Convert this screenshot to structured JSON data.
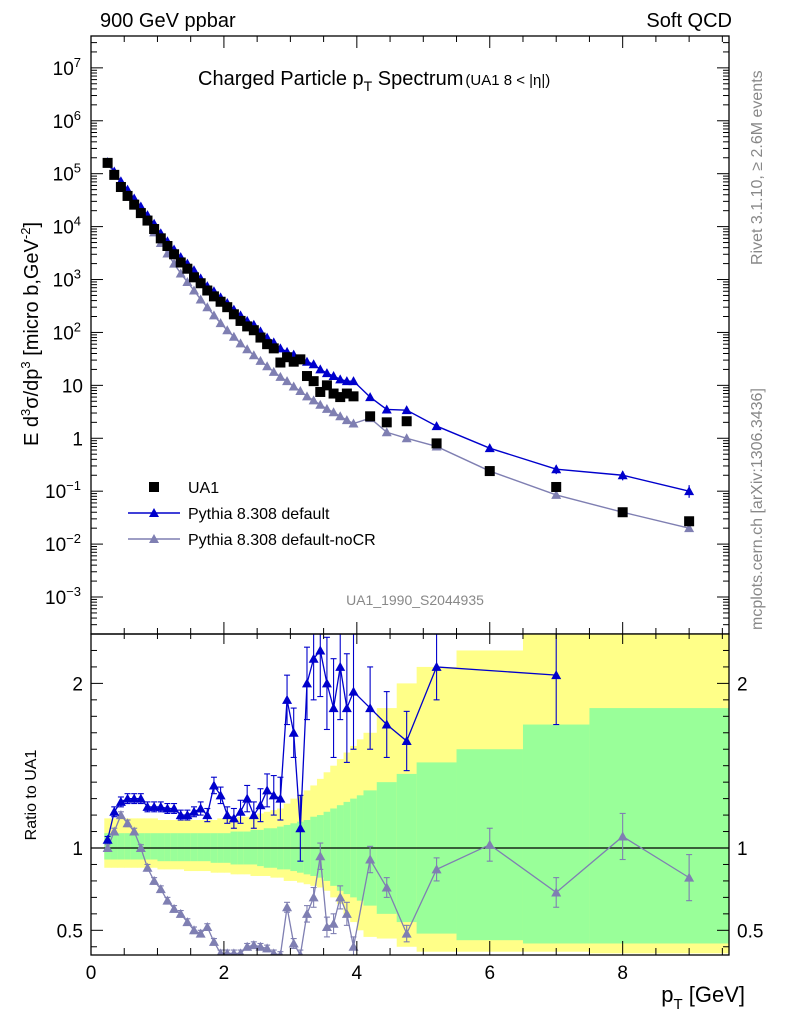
{
  "header": {
    "left_label": "900 GeV ppbar",
    "right_label": "Soft QCD"
  },
  "side": {
    "rivet_label": "Rivet 3.1.10, ≥ 2.6M events",
    "mcplots_label": "mcplots.cern.ch [arXiv:1306.3436]"
  },
  "colors": {
    "data": "#000000",
    "default": "#0000cc",
    "nocr": "#7f7fb2",
    "band_yellow": "#ffff88",
    "band_green": "#99ff99"
  },
  "chart_data": [
    {
      "type": "scatter",
      "title_main": "Charged Particle p",
      "title_sub": "T",
      "title_tail": " Spectrum",
      "title_detail": "(UA1   8 < |η|)",
      "ylabel_parts": [
        "E d",
        "3",
        "σ/dp",
        "3",
        " [micro b,GeV",
        "-2",
        "]"
      ],
      "watermark": "UA1_1990_S2044935",
      "log_y": true,
      "xlim": [
        0,
        9.6
      ],
      "ylim": [
        0.0002,
        40000000
      ],
      "y_ticks": [
        {
          "value": 10000000,
          "base": "10",
          "exp": "7"
        },
        {
          "value": 1000000,
          "base": "10",
          "exp": "6"
        },
        {
          "value": 100000,
          "base": "10",
          "exp": "5"
        },
        {
          "value": 10000,
          "base": "10",
          "exp": "4"
        },
        {
          "value": 1000,
          "base": "10",
          "exp": "3"
        },
        {
          "value": 100,
          "base": "10",
          "exp": "2"
        },
        {
          "value": 10,
          "base": "10",
          "exp": ""
        },
        {
          "value": 1,
          "base": "1",
          "exp": ""
        },
        {
          "value": 0.1,
          "base": "10",
          "exp": "−1"
        },
        {
          "value": 0.01,
          "base": "10",
          "exp": "−2"
        },
        {
          "value": 0.001,
          "base": "10",
          "exp": "−3"
        }
      ],
      "legend": [
        {
          "name": "UA1",
          "marker": "square",
          "color": "#000000"
        },
        {
          "name": "Pythia 8.308 default",
          "marker": "triangle",
          "color": "#0000cc"
        },
        {
          "name": "Pythia 8.308 default-noCR",
          "marker": "triangle",
          "color": "#7f7fb2"
        }
      ],
      "legend_position": "bottom-left",
      "series": [
        {
          "name": "UA1",
          "x": [
            0.25,
            0.35,
            0.45,
            0.55,
            0.65,
            0.75,
            0.85,
            0.95,
            1.05,
            1.15,
            1.25,
            1.35,
            1.45,
            1.55,
            1.65,
            1.75,
            1.85,
            1.95,
            2.05,
            2.15,
            2.25,
            2.35,
            2.45,
            2.55,
            2.65,
            2.75,
            2.85,
            2.95,
            3.05,
            3.15,
            3.25,
            3.35,
            3.45,
            3.55,
            3.65,
            3.75,
            3.85,
            3.95,
            4.2,
            4.45,
            4.75,
            5.2,
            6.0,
            7.0,
            8.0,
            9.0
          ],
          "y": [
            160000,
            95000,
            56000,
            38000,
            26000,
            18000,
            13000,
            9000,
            6000,
            4300,
            3000,
            2100,
            1600,
            1100,
            850,
            620,
            480,
            380,
            300,
            220,
            165,
            130,
            110,
            80,
            60,
            50,
            27,
            34,
            28,
            31,
            15,
            12,
            7.5,
            10,
            7,
            6,
            7,
            6.2,
            2.6,
            2.0,
            2.1,
            0.8,
            0.24,
            0.12,
            0.04,
            0.027
          ]
        },
        {
          "name": "Pythia 8.308 default",
          "x": [
            0.25,
            0.35,
            0.45,
            0.55,
            0.65,
            0.75,
            0.85,
            0.95,
            1.05,
            1.15,
            1.25,
            1.35,
            1.45,
            1.55,
            1.65,
            1.75,
            1.85,
            1.95,
            2.05,
            2.15,
            2.25,
            2.35,
            2.45,
            2.55,
            2.65,
            2.75,
            2.85,
            2.95,
            3.05,
            3.15,
            3.25,
            3.35,
            3.45,
            3.55,
            3.65,
            3.75,
            3.85,
            3.95,
            4.2,
            4.45,
            4.75,
            5.2,
            6.0,
            7.0,
            8.0,
            9.0
          ],
          "y": [
            165000,
            110000,
            72000,
            50000,
            34000,
            24000,
            16500,
            11300,
            7500,
            5300,
            3700,
            2650,
            2000,
            1500,
            1050,
            750,
            600,
            460,
            360,
            270,
            210,
            165,
            140,
            105,
            80,
            65,
            50,
            43,
            38,
            31,
            28,
            25,
            20,
            17,
            15,
            13,
            12,
            12,
            6,
            3.5,
            3.4,
            1.7,
            0.65,
            0.26,
            0.2,
            0.1
          ]
        },
        {
          "name": "Pythia 8.308 default-noCR",
          "x": [
            0.25,
            0.35,
            0.45,
            0.55,
            0.65,
            0.75,
            0.85,
            0.95,
            1.05,
            1.15,
            1.25,
            1.35,
            1.45,
            1.55,
            1.65,
            1.75,
            1.85,
            1.95,
            2.05,
            2.15,
            2.25,
            2.35,
            2.45,
            2.55,
            2.65,
            2.75,
            2.85,
            2.95,
            3.05,
            3.15,
            3.25,
            3.35,
            3.45,
            3.55,
            3.65,
            3.75,
            3.85,
            3.95,
            4.2,
            4.45,
            4.75,
            5.2,
            6.0,
            7.0,
            8.0,
            9.0
          ],
          "y": [
            160000,
            100000,
            66000,
            44000,
            29000,
            19000,
            12500,
            7800,
            4900,
            3100,
            2000,
            1300,
            900,
            620,
            420,
            300,
            210,
            150,
            110,
            83,
            62,
            48,
            37,
            29,
            23,
            18,
            14.5,
            12,
            9.5,
            7.8,
            6.2,
            5.2,
            4.3,
            3.6,
            3.1,
            2.6,
            2.2,
            1.9,
            2.4,
            1.3,
            1.0,
            0.7,
            0.24,
            0.085,
            0.04,
            0.02
          ]
        }
      ],
      "errors": {
        "Pythia 8.308 default": {
          "x": [
            7.0,
            8.0,
            9.0
          ],
          "lo": [
            0.21,
            0.16,
            0.075
          ],
          "hi": [
            0.31,
            0.24,
            0.13
          ]
        }
      }
    },
    {
      "type": "scatter",
      "ylabel": "Ratio to UA1",
      "xlabel_main": "p",
      "xlabel_sub": "T",
      "xlabel_tail": " [GeV]",
      "xlim": [
        0,
        9.6
      ],
      "ylim": [
        0.35,
        2.3
      ],
      "x_ticks": [
        "0",
        "2",
        "4",
        "6",
        "8"
      ],
      "y_ticks": [
        "0.5",
        "1",
        "2"
      ],
      "reference_line": 1,
      "bands": {
        "edges": [
          0.2,
          0.3,
          0.4,
          0.5,
          0.6,
          0.7,
          0.8,
          0.9,
          1.0,
          1.1,
          1.2,
          1.3,
          1.4,
          1.5,
          1.6,
          1.7,
          1.8,
          1.9,
          2.0,
          2.1,
          2.2,
          2.3,
          2.4,
          2.5,
          2.6,
          2.7,
          2.8,
          2.9,
          3.0,
          3.1,
          3.2,
          3.3,
          3.4,
          3.5,
          3.6,
          3.7,
          3.8,
          3.9,
          4.0,
          4.1,
          4.3,
          4.6,
          4.9,
          5.5,
          6.5,
          7.5,
          9.6
        ],
        "yellow_lo": [
          0.88,
          0.88,
          0.88,
          0.88,
          0.88,
          0.88,
          0.88,
          0.88,
          0.87,
          0.87,
          0.87,
          0.87,
          0.86,
          0.86,
          0.86,
          0.86,
          0.85,
          0.85,
          0.85,
          0.84,
          0.84,
          0.84,
          0.83,
          0.83,
          0.83,
          0.82,
          0.82,
          0.8,
          0.8,
          0.79,
          0.78,
          0.77,
          0.76,
          0.74,
          0.7,
          0.66,
          0.6,
          0.55,
          0.5,
          0.46,
          0.45,
          0.4,
          0.37,
          0.37,
          0.37,
          0.36
        ],
        "yellow_hi": [
          1.18,
          1.18,
          1.18,
          1.18,
          1.18,
          1.18,
          1.18,
          1.18,
          1.17,
          1.17,
          1.17,
          1.17,
          1.17,
          1.17,
          1.17,
          1.17,
          1.17,
          1.18,
          1.18,
          1.18,
          1.19,
          1.19,
          1.2,
          1.21,
          1.22,
          1.23,
          1.24,
          1.27,
          1.3,
          1.32,
          1.35,
          1.38,
          1.42,
          1.46,
          1.5,
          1.54,
          1.58,
          1.62,
          1.66,
          1.7,
          1.85,
          2.0,
          2.1,
          2.2,
          2.3,
          2.3
        ],
        "green_lo": [
          0.93,
          0.93,
          0.93,
          0.93,
          0.93,
          0.93,
          0.93,
          0.93,
          0.92,
          0.92,
          0.92,
          0.92,
          0.92,
          0.92,
          0.92,
          0.92,
          0.91,
          0.91,
          0.91,
          0.9,
          0.9,
          0.9,
          0.9,
          0.89,
          0.88,
          0.88,
          0.87,
          0.87,
          0.86,
          0.85,
          0.84,
          0.83,
          0.82,
          0.8,
          0.77,
          0.74,
          0.72,
          0.7,
          0.68,
          0.65,
          0.6,
          0.55,
          0.48,
          0.44,
          0.42,
          0.42
        ],
        "green_hi": [
          1.09,
          1.09,
          1.09,
          1.09,
          1.09,
          1.09,
          1.09,
          1.09,
          1.09,
          1.09,
          1.09,
          1.09,
          1.09,
          1.09,
          1.09,
          1.09,
          1.09,
          1.09,
          1.09,
          1.1,
          1.1,
          1.1,
          1.11,
          1.11,
          1.12,
          1.12,
          1.13,
          1.14,
          1.15,
          1.16,
          1.17,
          1.19,
          1.2,
          1.22,
          1.24,
          1.26,
          1.28,
          1.3,
          1.32,
          1.35,
          1.4,
          1.45,
          1.52,
          1.6,
          1.75,
          1.85
        ]
      },
      "series": [
        {
          "name": "Pythia 8.308 default",
          "x": [
            0.25,
            0.35,
            0.45,
            0.55,
            0.65,
            0.75,
            0.85,
            0.95,
            1.05,
            1.15,
            1.25,
            1.35,
            1.45,
            1.55,
            1.65,
            1.75,
            1.85,
            1.95,
            2.05,
            2.15,
            2.25,
            2.35,
            2.45,
            2.55,
            2.65,
            2.75,
            2.85,
            2.95,
            3.05,
            3.15,
            3.25,
            3.35,
            3.45,
            3.55,
            3.65,
            3.75,
            3.85,
            3.95,
            4.2,
            4.45,
            4.75,
            5.2,
            7.0
          ],
          "y": [
            1.05,
            1.22,
            1.28,
            1.3,
            1.3,
            1.3,
            1.25,
            1.25,
            1.25,
            1.24,
            1.24,
            1.2,
            1.2,
            1.22,
            1.24,
            1.2,
            1.38,
            1.32,
            1.2,
            1.18,
            1.22,
            1.3,
            1.2,
            1.26,
            1.35,
            1.32,
            1.3,
            1.9,
            1.7,
            1.12,
            2.0,
            2.15,
            2.2,
            2.0,
            1.85,
            2.1,
            1.85,
            1.95,
            1.85,
            1.75,
            1.65,
            2.1,
            2.05
          ],
          "err": [
            0.02,
            0.03,
            0.03,
            0.03,
            0.03,
            0.03,
            0.03,
            0.03,
            0.03,
            0.03,
            0.03,
            0.03,
            0.03,
            0.03,
            0.04,
            0.04,
            0.05,
            0.05,
            0.05,
            0.06,
            0.07,
            0.08,
            0.08,
            0.1,
            0.1,
            0.12,
            0.13,
            0.15,
            0.15,
            0.2,
            0.22,
            0.25,
            0.28,
            0.28,
            0.3,
            0.32,
            0.33,
            0.35,
            0.25,
            0.2,
            0.18,
            0.2,
            0.3
          ]
        },
        {
          "name": "Pythia 8.308 default-noCR",
          "x": [
            0.25,
            0.35,
            0.45,
            0.55,
            0.65,
            0.75,
            0.85,
            0.95,
            1.05,
            1.15,
            1.25,
            1.35,
            1.45,
            1.55,
            1.65,
            1.75,
            1.85,
            1.95,
            2.05,
            2.15,
            2.25,
            2.35,
            2.45,
            2.55,
            2.65,
            2.75,
            2.85,
            2.95,
            3.05,
            3.15,
            3.25,
            3.35,
            3.45,
            3.55,
            3.65,
            3.75,
            3.85,
            3.95,
            4.2,
            4.45,
            4.75,
            5.2,
            6.0,
            7.0,
            8.0,
            9.0
          ],
          "y": [
            1.0,
            1.1,
            1.2,
            1.15,
            1.1,
            1.0,
            0.88,
            0.8,
            0.75,
            0.68,
            0.63,
            0.6,
            0.55,
            0.5,
            0.48,
            0.52,
            0.43,
            0.36,
            0.36,
            0.36,
            0.36,
            0.4,
            0.41,
            0.4,
            0.39,
            0.36,
            0.35,
            0.64,
            0.42,
            0.35,
            0.6,
            0.7,
            0.95,
            0.52,
            0.54,
            0.7,
            0.6,
            0.4,
            0.93,
            0.76,
            0.48,
            0.87,
            1.02,
            0.73,
            1.07,
            0.82
          ],
          "err": [
            0.02,
            0.02,
            0.02,
            0.02,
            0.02,
            0.02,
            0.02,
            0.02,
            0.02,
            0.02,
            0.02,
            0.02,
            0.02,
            0.02,
            0.02,
            0.02,
            0.02,
            0.02,
            0.02,
            0.02,
            0.02,
            0.02,
            0.02,
            0.02,
            0.02,
            0.02,
            0.02,
            0.03,
            0.03,
            0.03,
            0.05,
            0.06,
            0.08,
            0.06,
            0.06,
            0.07,
            0.07,
            0.06,
            0.08,
            0.06,
            0.05,
            0.07,
            0.1,
            0.09,
            0.14,
            0.14
          ]
        }
      ]
    }
  ]
}
